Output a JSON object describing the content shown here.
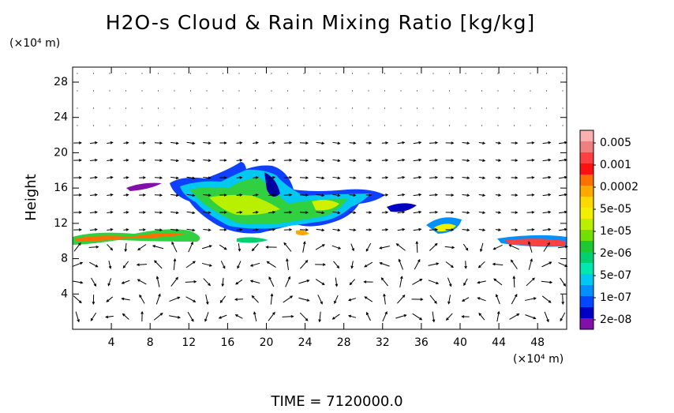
{
  "chart_data": {
    "type": "contour",
    "title": "H2O-s Cloud & Rain Mixing Ratio [kg/kg]",
    "y_unit": "(×10⁴ m)",
    "x_unit": "(×10⁴ m)",
    "y_label": "Height",
    "footer": "TIME = 7120000.0",
    "xlim": [
      0,
      51
    ],
    "xticks": [
      4,
      8,
      12,
      16,
      20,
      24,
      28,
      32,
      36,
      40,
      44,
      48
    ],
    "ylim": [
      0,
      29.7
    ],
    "yticks": [
      4,
      8,
      12,
      16,
      20,
      24,
      28
    ],
    "colorbar": {
      "colors": [
        "#f8b0b0",
        "#f08080",
        "#ff4040",
        "#ff1010",
        "#ff7000",
        "#ffa800",
        "#ffd800",
        "#f0f000",
        "#b8f000",
        "#70e000",
        "#20c830",
        "#00d070",
        "#00e8b0",
        "#00c8f0",
        "#0090ff",
        "#0048ff",
        "#0000c0",
        "#8010a8"
      ],
      "levels": [
        0.005,
        0.001,
        0.0002,
        {
          "value": 5e-05,
          "label": "5e-05"
        },
        {
          "value": 1e-05,
          "label": "1e-05"
        },
        {
          "value": 2e-06,
          "label": "2e-06"
        },
        {
          "value": 5e-07,
          "label": "5e-07"
        },
        {
          "value": 1e-07,
          "label": "1e-07"
        },
        {
          "value": 2e-08,
          "label": "2e-08"
        }
      ]
    }
  }
}
